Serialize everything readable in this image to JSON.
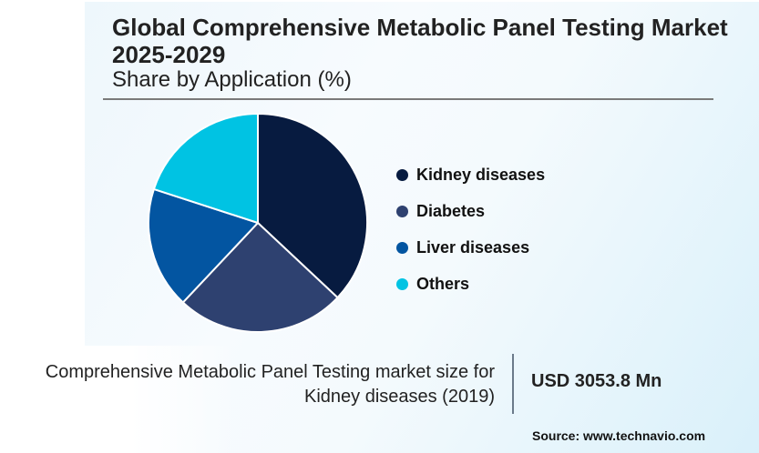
{
  "header": {
    "title": "Global Comprehensive Metabolic Panel Testing Market 2025-2029",
    "subtitle": "Share by Application (%)"
  },
  "chart_data": {
    "type": "pie",
    "title": "Global Comprehensive Metabolic Panel Testing Market 2025-2029",
    "subtitle": "Share by Application (%)",
    "categories": [
      "Kidney diseases",
      "Diabetes",
      "Liver diseases",
      "Others"
    ],
    "values": [
      37,
      25,
      18,
      20
    ],
    "colors": [
      "#071b40",
      "#2e4170",
      "#0355a1",
      "#00c3e3"
    ],
    "start_angle": "12 o'clock, clockwise",
    "legend_position": "right"
  },
  "legend": [
    {
      "label": "Kidney diseases",
      "color": "#071b40"
    },
    {
      "label": "Diabetes",
      "color": "#2e4170"
    },
    {
      "label": "Liver diseases",
      "color": "#0355a1"
    },
    {
      "label": "Others",
      "color": "#00c3e3"
    }
  ],
  "footer": {
    "desc_line1": "Comprehensive Metabolic Panel Testing market size for",
    "desc_line2": "Kidney diseases (2019)",
    "value": "USD 3053.8 Mn",
    "source": "Source: www.technavio.com"
  }
}
